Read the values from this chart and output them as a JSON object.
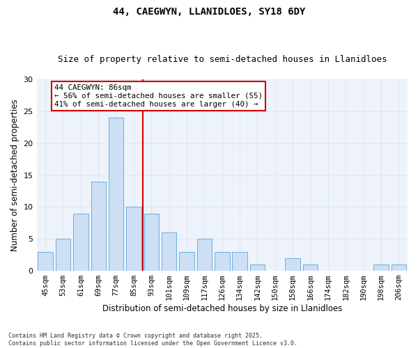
{
  "title": "44, CAEGWYN, LLANIDLOES, SY18 6DY",
  "subtitle": "Size of property relative to semi-detached houses in Llanidloes",
  "xlabel": "Distribution of semi-detached houses by size in Llanidloes",
  "ylabel": "Number of semi-detached properties",
  "categories": [
    "45sqm",
    "53sqm",
    "61sqm",
    "69sqm",
    "77sqm",
    "85sqm",
    "93sqm",
    "101sqm",
    "109sqm",
    "117sqm",
    "126sqm",
    "134sqm",
    "142sqm",
    "150sqm",
    "158sqm",
    "166sqm",
    "174sqm",
    "182sqm",
    "190sqm",
    "198sqm",
    "206sqm"
  ],
  "values": [
    3,
    5,
    9,
    14,
    24,
    10,
    9,
    6,
    3,
    5,
    3,
    3,
    1,
    0,
    2,
    1,
    0,
    0,
    0,
    1,
    1
  ],
  "bar_color": "#ccdff5",
  "bar_edge_color": "#6aaee0",
  "vline_color": "#cc0000",
  "annotation_title": "44 CAEGWYN: 86sqm",
  "annotation_line2": "← 56% of semi-detached houses are smaller (55)",
  "annotation_line3": "41% of semi-detached houses are larger (40) →",
  "annotation_box_color": "#cc0000",
  "ylim": [
    0,
    30
  ],
  "yticks": [
    0,
    5,
    10,
    15,
    20,
    25,
    30
  ],
  "grid_color": "#dce8f5",
  "bg_color": "#eef3fb",
  "footnote": "Contains HM Land Registry data © Crown copyright and database right 2025.\nContains public sector information licensed under the Open Government Licence v3.0.",
  "title_fontsize": 10,
  "subtitle_fontsize": 9,
  "xlabel_fontsize": 8.5,
  "ylabel_fontsize": 8.5,
  "tick_fontsize": 7.5,
  "ytick_fontsize": 8,
  "footnote_fontsize": 6,
  "ann_fontsize": 7.8
}
